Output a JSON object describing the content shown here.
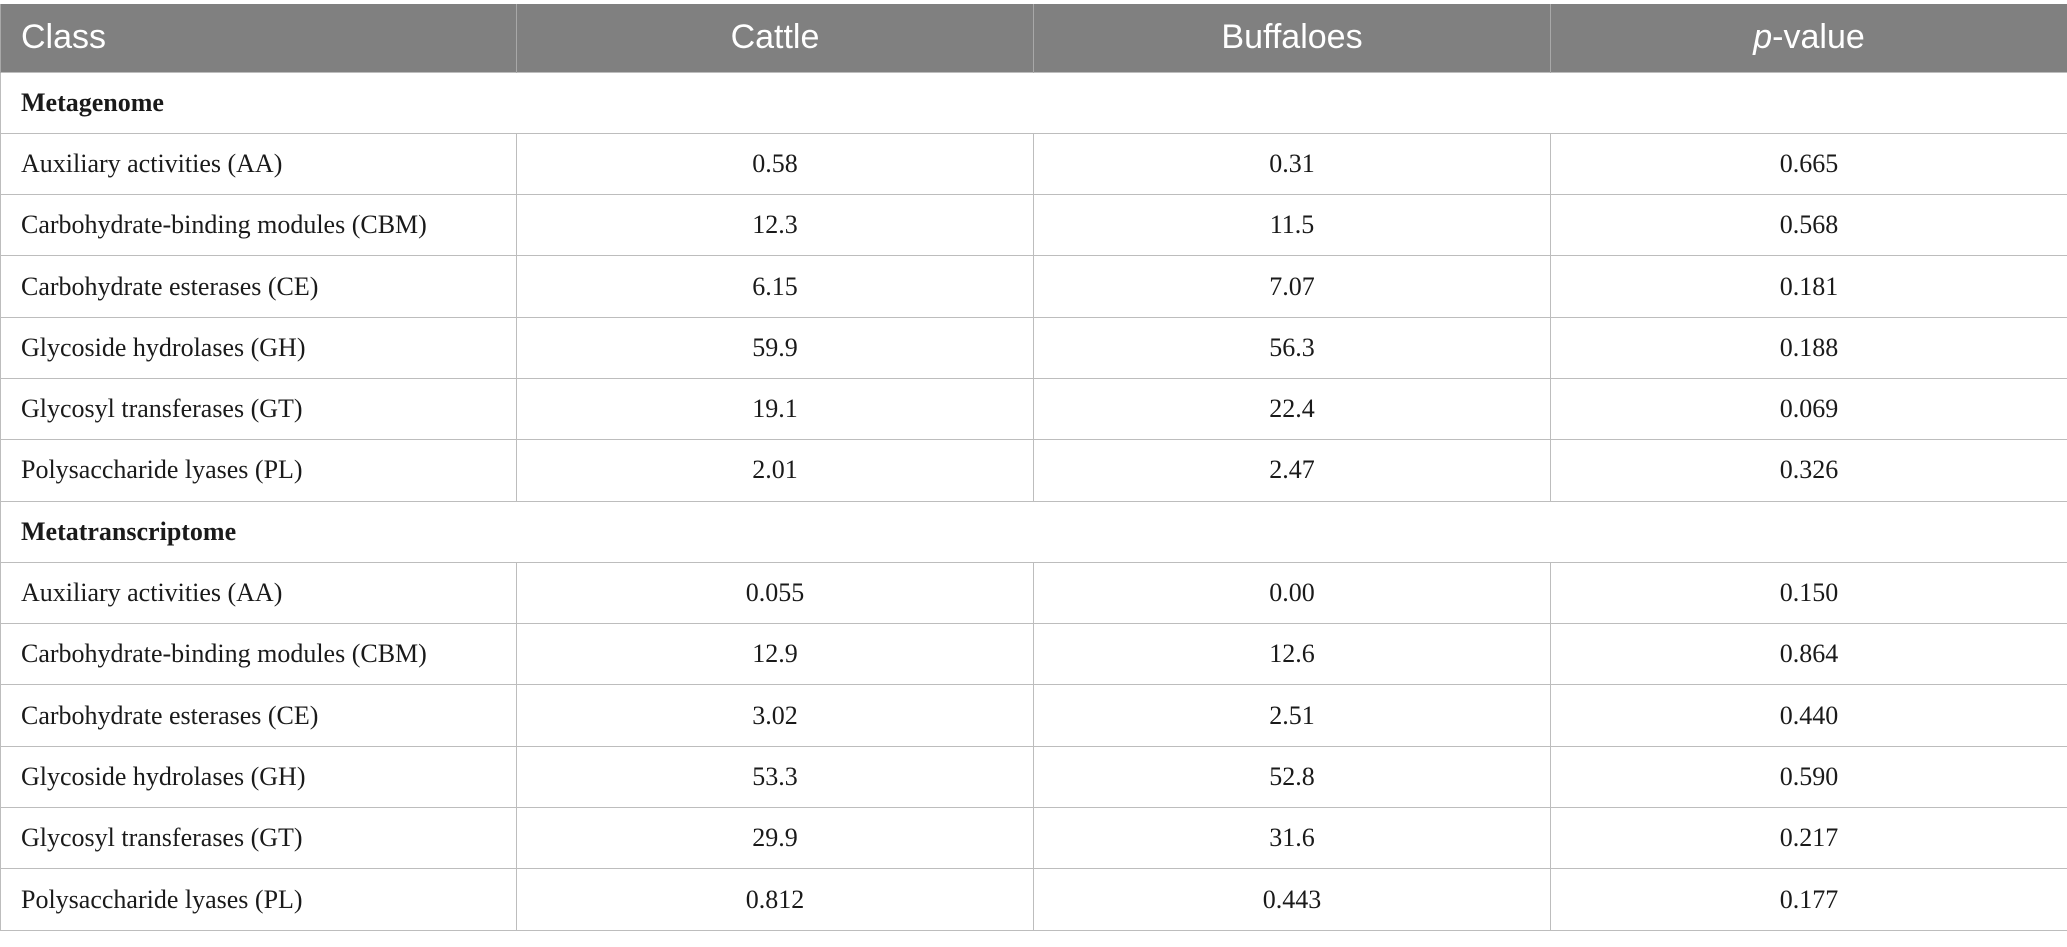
{
  "table": {
    "headers": {
      "class": "Class",
      "cattle": "Cattle",
      "buffaloes": "Buffaloes",
      "pvalue_italic": "p",
      "pvalue_suffix": "-value"
    },
    "sections": [
      {
        "title": "Metagenome",
        "rows": [
          {
            "class": "Auxiliary activities (AA)",
            "cattle": "0.58",
            "buffaloes": "0.31",
            "p": "0.665"
          },
          {
            "class": "Carbohydrate-binding modules (CBM)",
            "cattle": "12.3",
            "buffaloes": "11.5",
            "p": "0.568"
          },
          {
            "class": "Carbohydrate esterases (CE)",
            "cattle": "6.15",
            "buffaloes": "7.07",
            "p": "0.181"
          },
          {
            "class": "Glycoside hydrolases (GH)",
            "cattle": "59.9",
            "buffaloes": "56.3",
            "p": "0.188"
          },
          {
            "class": "Glycosyl transferases (GT)",
            "cattle": "19.1",
            "buffaloes": "22.4",
            "p": "0.069"
          },
          {
            "class": "Polysaccharide lyases (PL)",
            "cattle": "2.01",
            "buffaloes": "2.47",
            "p": "0.326"
          }
        ]
      },
      {
        "title": "Metatranscriptome",
        "rows": [
          {
            "class": "Auxiliary activities (AA)",
            "cattle": "0.055",
            "buffaloes": "0.00",
            "p": "0.150"
          },
          {
            "class": "Carbohydrate-binding modules (CBM)",
            "cattle": "12.9",
            "buffaloes": "12.6",
            "p": "0.864"
          },
          {
            "class": "Carbohydrate esterases (CE)",
            "cattle": "3.02",
            "buffaloes": "2.51",
            "p": "0.440"
          },
          {
            "class": "Glycoside hydrolases (GH)",
            "cattle": "53.3",
            "buffaloes": "52.8",
            "p": "0.590"
          },
          {
            "class": "Glycosyl transferases (GT)",
            "cattle": "29.9",
            "buffaloes": "31.6",
            "p": "0.217"
          },
          {
            "class": "Polysaccharide lyases (PL)",
            "cattle": "0.812",
            "buffaloes": "0.443",
            "p": "0.177"
          }
        ]
      }
    ]
  }
}
